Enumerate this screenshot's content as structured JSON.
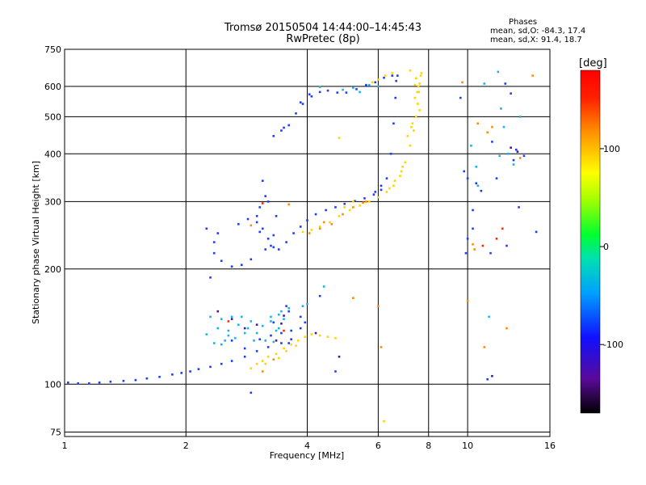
{
  "title": {
    "line1": "Tromsø 20150504 14:44:00–14:45:43",
    "line2": "RwPretec (8p)"
  },
  "phase_info": {
    "heading": "Phases",
    "o_line": "mean, sd,O: -84.3, 17.4",
    "x_line": "mean, sd,X:  91.4, 18.7"
  },
  "chart_data": {
    "type": "scatter",
    "title": "Tromsø 20150504 14:44:00–14:45:43",
    "subtitle": "RwPretec (8p)",
    "xlabel": "Frequency [MHz]",
    "ylabel": "Stationary phase Virtual Height [km]",
    "xscale": "log",
    "yscale": "log",
    "xlim": [
      1,
      16
    ],
    "ylim": [
      73,
      750
    ],
    "xticks": [
      1,
      2,
      4,
      6,
      8,
      10,
      16
    ],
    "xtick_labels": [
      "1",
      "2",
      "4",
      "6",
      "8",
      "10",
      "16"
    ],
    "yticks": [
      75,
      100,
      200,
      300,
      400,
      500,
      600,
      750
    ],
    "ytick_labels": [
      "75",
      "100",
      "200",
      "300",
      "400",
      "500",
      "600",
      "750"
    ],
    "grid": true,
    "colorbar": {
      "label": "[deg]",
      "range": [
        -170,
        180
      ],
      "ticks": [
        100,
        0,
        -100
      ],
      "tick_labels": [
        "100",
        "0",
        "-100"
      ],
      "colormap": "rainbow"
    },
    "series": [
      {
        "color": "#1e3cff",
        "values": [
          [
            1.02,
            101
          ],
          [
            1.08,
            100.5
          ],
          [
            1.15,
            100.5
          ],
          [
            1.22,
            101
          ],
          [
            1.3,
            101.5
          ],
          [
            1.4,
            102
          ],
          [
            1.5,
            102.5
          ],
          [
            1.6,
            103.5
          ],
          [
            1.72,
            104.5
          ],
          [
            1.85,
            106
          ],
          [
            1.95,
            107
          ],
          [
            2.05,
            108
          ],
          [
            2.15,
            109.5
          ],
          [
            2.3,
            111
          ],
          [
            2.45,
            113
          ],
          [
            2.6,
            115
          ],
          [
            2.8,
            118
          ],
          [
            3.0,
            122
          ],
          [
            3.2,
            125
          ],
          [
            3.45,
            128
          ],
          [
            3.65,
            131
          ],
          [
            2.7,
            262
          ],
          [
            2.85,
            270
          ],
          [
            3.0,
            265
          ],
          [
            3.1,
            255
          ],
          [
            3.2,
            240
          ],
          [
            3.3,
            228
          ],
          [
            3.4,
            225
          ],
          [
            3.55,
            235
          ],
          [
            3.7,
            248
          ],
          [
            3.85,
            258
          ],
          [
            4.0,
            268
          ],
          [
            4.2,
            278
          ],
          [
            4.45,
            285
          ],
          [
            4.7,
            290
          ],
          [
            4.95,
            296
          ],
          [
            5.25,
            301
          ],
          [
            5.55,
            306
          ],
          [
            5.85,
            313
          ],
          [
            6.1,
            322
          ],
          [
            6.3,
            345
          ],
          [
            6.45,
            400
          ],
          [
            6.55,
            480
          ],
          [
            6.62,
            560
          ],
          [
            6.65,
            620
          ],
          [
            6.7,
            640
          ],
          [
            6.1,
            330
          ],
          [
            5.9,
            318
          ],
          [
            2.35,
            220
          ],
          [
            2.45,
            210
          ],
          [
            2.6,
            203
          ],
          [
            2.75,
            205
          ],
          [
            2.9,
            212
          ],
          [
            2.4,
            248
          ],
          [
            2.35,
            235
          ],
          [
            3.05,
            290
          ],
          [
            3.1,
            340
          ],
          [
            3.15,
            310
          ],
          [
            3.2,
            300
          ],
          [
            3.05,
            250
          ],
          [
            3.15,
            225
          ],
          [
            3.25,
            230
          ],
          [
            3.3,
            245
          ],
          [
            3.35,
            275
          ],
          [
            3.0,
            275
          ],
          [
            3.3,
            445
          ],
          [
            3.45,
            460
          ],
          [
            3.6,
            475
          ],
          [
            3.75,
            510
          ],
          [
            3.9,
            540
          ],
          [
            4.1,
            565
          ],
          [
            4.3,
            580
          ],
          [
            4.5,
            585
          ],
          [
            4.75,
            578
          ],
          [
            5.0,
            578
          ],
          [
            5.3,
            590
          ],
          [
            5.6,
            605
          ],
          [
            5.9,
            615
          ],
          [
            6.2,
            632
          ],
          [
            6.5,
            640
          ],
          [
            3.5,
            468
          ],
          [
            3.85,
            545
          ],
          [
            4.05,
            572
          ],
          [
            2.6,
            130
          ],
          [
            2.8,
            124
          ],
          [
            3.05,
            131
          ],
          [
            3.25,
            134
          ],
          [
            3.45,
            136
          ],
          [
            3.65,
            138
          ],
          [
            3.85,
            140
          ],
          [
            3.6,
            155
          ],
          [
            3.85,
            150
          ],
          [
            3.95,
            145
          ],
          [
            2.3,
            190
          ],
          [
            2.25,
            255
          ],
          [
            3.55,
            160
          ],
          [
            4.3,
            170
          ],
          [
            3.3,
            145
          ],
          [
            3.6,
            128
          ],
          [
            2.9,
            95
          ],
          [
            4.7,
            108
          ],
          [
            11.2,
            103
          ],
          [
            9.8,
            360
          ],
          [
            10.0,
            345
          ],
          [
            10.3,
            285
          ],
          [
            10.5,
            335
          ],
          [
            11.5,
            430
          ],
          [
            10.0,
            240
          ],
          [
            12.8,
            575
          ],
          [
            13.2,
            410
          ],
          [
            13.8,
            395
          ],
          [
            14.8,
            250
          ],
          [
            12.5,
            230
          ],
          [
            11.4,
            220
          ],
          [
            9.9,
            220
          ],
          [
            10.8,
            320
          ],
          [
            9.6,
            560
          ],
          [
            11.8,
            345
          ],
          [
            12.4,
            610
          ],
          [
            13.0,
            385
          ],
          [
            10.3,
            255
          ],
          [
            13.4,
            290
          ]
        ]
      },
      {
        "color": "#18b4e6",
        "values": [
          [
            2.25,
            135
          ],
          [
            2.4,
            140
          ],
          [
            2.55,
            138
          ],
          [
            2.7,
            143
          ],
          [
            2.85,
            140
          ],
          [
            3.0,
            136
          ],
          [
            3.1,
            142
          ],
          [
            3.25,
            150
          ],
          [
            3.4,
            152
          ],
          [
            2.35,
            128
          ],
          [
            2.5,
            130
          ],
          [
            2.65,
            132
          ],
          [
            2.3,
            150
          ],
          [
            2.45,
            148
          ],
          [
            2.6,
            150
          ],
          [
            2.75,
            150
          ],
          [
            3.4,
            140
          ],
          [
            3.5,
            148
          ],
          [
            2.45,
            127
          ],
          [
            2.55,
            134
          ],
          [
            2.8,
            136
          ],
          [
            2.9,
            146
          ],
          [
            3.15,
            130
          ],
          [
            3.3,
            129
          ],
          [
            3.6,
            158
          ],
          [
            3.9,
            160
          ],
          [
            2.95,
            130
          ],
          [
            3.25,
            146
          ],
          [
            3.35,
            138
          ],
          [
            3.45,
            155
          ],
          [
            4.0,
            162
          ],
          [
            4.4,
            180
          ],
          [
            5.2,
            595
          ],
          [
            5.7,
            605
          ],
          [
            6.0,
            600
          ],
          [
            4.3,
            598
          ],
          [
            5.4,
            580
          ],
          [
            4.9,
            588
          ],
          [
            11.0,
            610
          ],
          [
            11.9,
            655
          ],
          [
            12.3,
            470
          ],
          [
            13.5,
            500
          ],
          [
            12.0,
            395
          ],
          [
            12.6,
            400
          ],
          [
            13.0,
            375
          ],
          [
            10.5,
            370
          ],
          [
            11.3,
            150
          ],
          [
            10.2,
            420
          ],
          [
            10.6,
            330
          ],
          [
            12.1,
            525
          ]
        ]
      },
      {
        "color": "#ffd400",
        "values": [
          [
            2.9,
            110
          ],
          [
            3.0,
            113
          ],
          [
            3.1,
            115
          ],
          [
            3.2,
            118
          ],
          [
            3.35,
            120
          ],
          [
            3.5,
            124
          ],
          [
            3.65,
            127
          ],
          [
            3.8,
            130
          ],
          [
            3.95,
            133
          ],
          [
            4.1,
            135
          ],
          [
            4.3,
            134
          ],
          [
            4.5,
            133
          ],
          [
            4.7,
            132
          ],
          [
            3.9,
            250
          ],
          [
            4.1,
            253
          ],
          [
            4.3,
            258
          ],
          [
            4.55,
            265
          ],
          [
            4.8,
            275
          ],
          [
            5.1,
            285
          ],
          [
            5.4,
            293
          ],
          [
            5.7,
            300
          ],
          [
            6.0,
            308
          ],
          [
            6.3,
            318
          ],
          [
            6.55,
            330
          ],
          [
            6.8,
            350
          ],
          [
            7.0,
            380
          ],
          [
            7.2,
            420
          ],
          [
            7.35,
            460
          ],
          [
            7.45,
            500
          ],
          [
            7.52,
            540
          ],
          [
            7.57,
            580
          ],
          [
            7.6,
            610
          ],
          [
            7.65,
            640
          ],
          [
            7.55,
            600
          ],
          [
            7.4,
            560
          ],
          [
            7.3,
            480
          ],
          [
            7.6,
            520
          ],
          [
            7.68,
            650
          ],
          [
            5.8,
            615
          ],
          [
            6.0,
            625
          ],
          [
            6.25,
            640
          ],
          [
            6.5,
            650
          ],
          [
            7.4,
            605
          ],
          [
            4.8,
            440
          ],
          [
            6.2,
            80
          ],
          [
            7.2,
            660
          ],
          [
            7.45,
            630
          ],
          [
            7.5,
            580
          ],
          [
            7.1,
            445
          ],
          [
            7.25,
            470
          ],
          [
            6.85,
            360
          ],
          [
            6.9,
            370
          ],
          [
            6.6,
            340
          ],
          [
            6.4,
            325
          ],
          [
            4.95,
            290
          ],
          [
            5.2,
            300
          ],
          [
            3.4,
            117
          ],
          [
            3.55,
            122
          ],
          [
            3.15,
            113
          ],
          [
            3.75,
            126
          ]
        ]
      },
      {
        "color": "#ff8c00",
        "values": [
          [
            4.05,
            248
          ],
          [
            4.3,
            255
          ],
          [
            4.6,
            262
          ],
          [
            4.9,
            278
          ],
          [
            5.2,
            290
          ],
          [
            5.5,
            298
          ],
          [
            3.3,
            116
          ],
          [
            3.1,
            108
          ],
          [
            6.1,
            125
          ],
          [
            6.0,
            160
          ],
          [
            5.2,
            168
          ],
          [
            10.3,
            232
          ],
          [
            10.6,
            480
          ],
          [
            11.2,
            455
          ],
          [
            11.5,
            470
          ],
          [
            12.5,
            140
          ],
          [
            11.0,
            125
          ],
          [
            10.4,
            225
          ],
          [
            13.5,
            390
          ],
          [
            14.5,
            640
          ],
          [
            9.7,
            615
          ],
          [
            10.0,
            165
          ],
          [
            3.6,
            295
          ],
          [
            2.9,
            260
          ],
          [
            4.4,
            265
          ],
          [
            5.6,
            300
          ]
        ]
      },
      {
        "color": "#4a1a8a",
        "values": [
          [
            2.6,
            148
          ],
          [
            2.8,
            140
          ],
          [
            3.0,
            143
          ],
          [
            3.45,
            144
          ],
          [
            3.5,
            151
          ],
          [
            4.2,
            136
          ],
          [
            4.8,
            118
          ],
          [
            11.5,
            105
          ],
          [
            12.8,
            415
          ],
          [
            13.3,
            405
          ],
          [
            3.35,
            130
          ],
          [
            2.4,
            155
          ]
        ]
      },
      {
        "color": "#ff2a00",
        "values": [
          [
            2.55,
            146
          ],
          [
            3.1,
            297
          ],
          [
            11.8,
            240
          ],
          [
            10.9,
            230
          ],
          [
            12.2,
            255
          ],
          [
            3.5,
            138
          ]
        ]
      }
    ]
  }
}
